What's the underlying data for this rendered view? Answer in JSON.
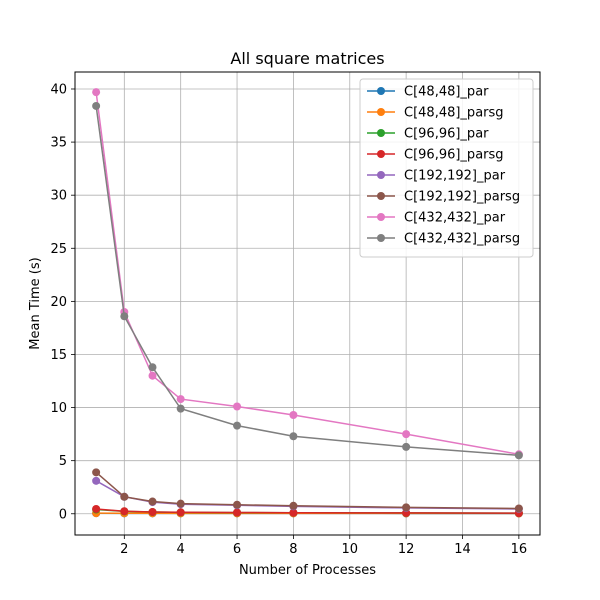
{
  "chart_data": {
    "type": "line",
    "title": "All square matrices",
    "xlabel": "Number of Processes",
    "ylabel": "Mean Time (s)",
    "xlim": [
      0.25,
      16.75
    ],
    "ylim": [
      -2.0,
      41.6
    ],
    "xticks": [
      2,
      4,
      6,
      8,
      10,
      12,
      14,
      16
    ],
    "yticks": [
      0,
      5,
      10,
      15,
      20,
      25,
      30,
      35,
      40
    ],
    "grid": true,
    "legend_position": "top-right",
    "x": [
      1,
      2,
      3,
      4,
      6,
      8,
      12,
      16
    ],
    "series": [
      {
        "name": "C[48,48]_par",
        "color": "#1f77b4",
        "values": [
          0.05,
          0.04,
          0.04,
          0.04,
          0.04,
          0.04,
          0.03,
          0.03
        ]
      },
      {
        "name": "C[48,48]_parsg",
        "color": "#ff7f0e",
        "values": [
          0.06,
          0.05,
          0.05,
          0.04,
          0.04,
          0.04,
          0.04,
          0.03
        ]
      },
      {
        "name": "C[96,96]_par",
        "color": "#2ca02c",
        "values": [
          0.4,
          0.22,
          0.16,
          0.13,
          0.11,
          0.1,
          0.08,
          0.06
        ]
      },
      {
        "name": "C[96,96]_parsg",
        "color": "#d62728",
        "values": [
          0.45,
          0.24,
          0.17,
          0.14,
          0.12,
          0.1,
          0.08,
          0.06
        ]
      },
      {
        "name": "C[192,192]_par",
        "color": "#9467bd",
        "values": [
          3.1,
          1.6,
          1.1,
          0.9,
          0.8,
          0.7,
          0.55,
          0.45
        ]
      },
      {
        "name": "C[192,192]_parsg",
        "color": "#8c564b",
        "values": [
          3.9,
          1.6,
          1.15,
          0.95,
          0.85,
          0.75,
          0.6,
          0.5
        ]
      },
      {
        "name": "C[432,432]_par",
        "color": "#e377c2",
        "values": [
          39.7,
          19.0,
          13.0,
          10.8,
          10.1,
          9.3,
          7.5,
          5.6
        ]
      },
      {
        "name": "C[432,432]_parsg",
        "color": "#7f7f7f",
        "values": [
          38.4,
          18.6,
          13.8,
          9.9,
          8.3,
          7.3,
          6.3,
          5.5
        ]
      }
    ]
  }
}
